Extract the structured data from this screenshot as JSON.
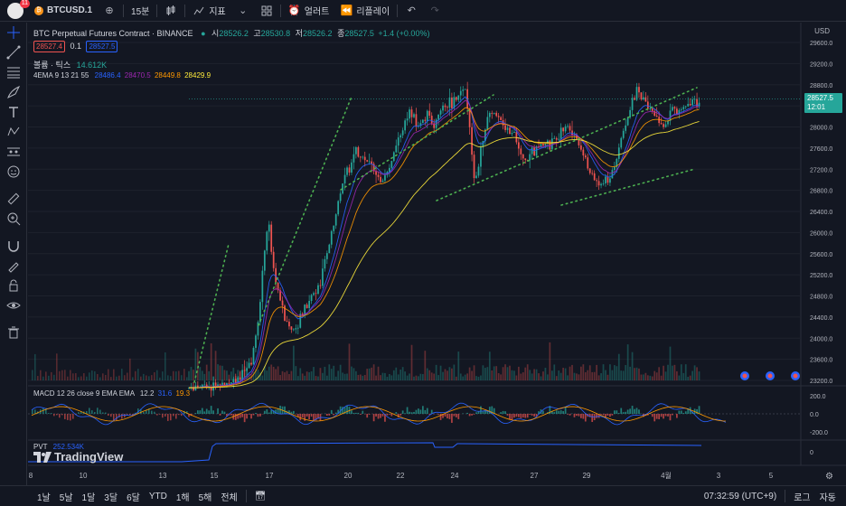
{
  "topbar": {
    "badge": "11",
    "symbol": "BTCUSD.1",
    "interval": "15분",
    "indicators": "지표",
    "alert": "얼러트",
    "replay": "리플레이"
  },
  "legend": {
    "title": "BTC Perpetual Futures Contract · BINANCE",
    "o_label": "시",
    "o": "28526.2",
    "h_label": "고",
    "h": "28530.8",
    "l_label": "저",
    "l": "28526.2",
    "c_label": "종",
    "c": "28527.5",
    "change": "+1.4 (+0.00%)",
    "bid": "28527.4",
    "spread": "0.1",
    "ask": "28527.5",
    "volume_label": "볼륨 · 틱스",
    "volume": "14.612K",
    "ema_label": "4EMA 9 13 21 55",
    "ema1": "28486.4",
    "ema2": "28470.5",
    "ema3": "28449.8",
    "ema4": "28429.9",
    "macd_label": "MACD 12 26 close 9 EMA EMA",
    "macd1": "12.2",
    "macd2": "31.6",
    "macd3": "19.3",
    "pvt_label": "PVT",
    "pvt": "252.534K",
    "watermark": "TradingView"
  },
  "price_scale": {
    "currency": "USD",
    "ticks": [
      "29600.0",
      "29200.0",
      "28800.0",
      "28400.0",
      "28000.0",
      "27600.0",
      "27200.0",
      "26800.0",
      "26400.0",
      "26000.0",
      "25600.0",
      "25200.0",
      "24800.0",
      "24400.0",
      "24000.0",
      "23600.0",
      "23200.0"
    ],
    "last_price": "28527.5",
    "countdown": "12:01",
    "macd_ticks": [
      "200.0",
      "0.0",
      "-200.0"
    ],
    "pvt_ticks": [
      "0"
    ]
  },
  "time_axis": [
    "8",
    "10",
    "13",
    "15",
    "17",
    "20",
    "22",
    "24",
    "27",
    "29",
    "4월",
    "3",
    "5"
  ],
  "bottombar": {
    "ranges": [
      "1날",
      "5날",
      "1달",
      "3달",
      "6달",
      "YTD",
      "1해",
      "5해",
      "전체"
    ],
    "clock": "07:32:59 (UTC+9)",
    "log": "로그",
    "auto": "자동"
  },
  "colors": {
    "background": "#131722",
    "up": "#26a69a",
    "down": "#ef5350",
    "ema_blue": "#2962ff",
    "ema_purple": "#9c27b0",
    "ema_orange": "#ff9800",
    "ema_yellow": "#ffeb3b",
    "trend_green": "#4caf50",
    "pvt_blue": "#2962ff"
  },
  "chart_data": {
    "type": "candlestick",
    "price_range": [
      23200,
      29600
    ],
    "close_path": [
      [
        0,
        23050
      ],
      [
        6,
        23100
      ],
      [
        10,
        23180
      ],
      [
        12,
        23300
      ],
      [
        14,
        23500
      ],
      [
        15,
        23900
      ],
      [
        16,
        24500
      ],
      [
        17,
        25600
      ],
      [
        18,
        26200
      ],
      [
        19,
        25500
      ],
      [
        20,
        25000
      ],
      [
        21,
        24600
      ],
      [
        22,
        24300
      ],
      [
        24,
        24200
      ],
      [
        26,
        24500
      ],
      [
        28,
        24800
      ],
      [
        30,
        25100
      ],
      [
        32,
        25800
      ],
      [
        34,
        26600
      ],
      [
        36,
        27200
      ],
      [
        38,
        27500
      ],
      [
        40,
        27400
      ],
      [
        42,
        27200
      ],
      [
        44,
        27000
      ],
      [
        46,
        27300
      ],
      [
        48,
        27800
      ],
      [
        50,
        28300
      ],
      [
        52,
        28000
      ],
      [
        54,
        28200
      ],
      [
        56,
        28100
      ],
      [
        58,
        28400
      ],
      [
        60,
        28500
      ],
      [
        62,
        28600
      ],
      [
        63,
        28700
      ],
      [
        64,
        27700
      ],
      [
        65,
        27000
      ],
      [
        66,
        27400
      ],
      [
        68,
        28200
      ],
      [
        70,
        28300
      ],
      [
        72,
        28000
      ],
      [
        74,
        27800
      ],
      [
        76,
        27300
      ],
      [
        78,
        27500
      ],
      [
        80,
        27700
      ],
      [
        82,
        27600
      ],
      [
        84,
        27900
      ],
      [
        86,
        28000
      ],
      [
        88,
        27800
      ],
      [
        90,
        27400
      ],
      [
        92,
        27000
      ],
      [
        94,
        26900
      ],
      [
        96,
        27100
      ],
      [
        98,
        27700
      ],
      [
        100,
        28300
      ],
      [
        102,
        28700
      ],
      [
        104,
        28400
      ],
      [
        106,
        28200
      ],
      [
        108,
        28000
      ],
      [
        110,
        28300
      ],
      [
        112,
        28300
      ],
      [
        114,
        28450
      ],
      [
        116,
        28527
      ]
    ],
    "macd_ticks": [
      200,
      0,
      -200
    ],
    "pvt_label": "PVT"
  }
}
